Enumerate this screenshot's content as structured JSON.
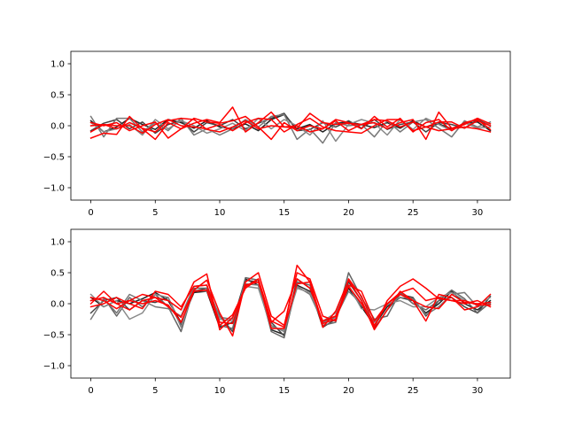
{
  "chart_data": [
    {
      "type": "line",
      "title": "",
      "xlabel": "",
      "ylabel": "",
      "xlim": [
        -1.55,
        32.55
      ],
      "ylim": [
        -1.2,
        1.2
      ],
      "xticks": [
        0,
        5,
        10,
        15,
        20,
        25,
        30
      ],
      "yticks": [
        -1.0,
        -0.5,
        0.0,
        0.5,
        1.0
      ],
      "xtick_labels": [
        "0",
        "5",
        "10",
        "15",
        "20",
        "25",
        "30"
      ],
      "ytick_labels": [
        "−1.0",
        "−0.5",
        "0.0",
        "0.5",
        "1.0"
      ],
      "grid": false,
      "x": [
        0,
        1,
        2,
        3,
        4,
        5,
        6,
        7,
        8,
        9,
        10,
        11,
        12,
        13,
        14,
        15,
        16,
        17,
        18,
        19,
        20,
        21,
        22,
        23,
        24,
        25,
        26,
        27,
        28,
        29,
        30,
        31
      ],
      "series": [
        {
          "color": "#222222",
          "values": [
            0.08,
            -0.1,
            -0.02,
            0.12,
            0.02,
            -0.06,
            0.1,
            0.05,
            -0.04,
            0.08,
            -0.02,
            -0.05,
            0.03,
            -0.08,
            0.1,
            0.18,
            -0.05,
            0.02,
            -0.1,
            0.04,
            0.06,
            0.02,
            -0.03,
            0.05,
            -0.04,
            0.08,
            -0.02,
            0.03,
            -0.05,
            0.04,
            0.06,
            -0.08
          ]
        },
        {
          "color": "#444444",
          "values": [
            -0.08,
            0.04,
            0.1,
            -0.05,
            0.06,
            -0.12,
            0.02,
            0.08,
            -0.1,
            0.05,
            0.0,
            0.1,
            -0.05,
            0.04,
            0.12,
            0.2,
            -0.08,
            -0.06,
            0.05,
            -0.02,
            0.08,
            -0.04,
            0.1,
            -0.06,
            0.02,
            0.06,
            -0.1,
            0.05,
            0.02,
            -0.04,
            0.1,
            0.0
          ]
        },
        {
          "color": "#777777",
          "values": [
            0.15,
            -0.18,
            0.12,
            0.12,
            -0.1,
            0.05,
            -0.08,
            0.12,
            -0.15,
            -0.05,
            -0.15,
            -0.05,
            0.1,
            -0.02,
            0.15,
            0.18,
            -0.22,
            -0.05,
            -0.28,
            0.05,
            0.0,
            0.02,
            -0.18,
            0.08,
            -0.1,
            0.06,
            0.1,
            -0.04,
            -0.18,
            0.08,
            -0.02,
            0.06
          ]
        },
        {
          "color": "#888888",
          "values": [
            0.05,
            -0.1,
            -0.05,
            0.02,
            -0.15,
            0.1,
            -0.05,
            0.08,
            0.0,
            -0.12,
            -0.05,
            0.04,
            -0.08,
            0.12,
            -0.05,
            0.1,
            0.0,
            -0.15,
            0.08,
            -0.25,
            0.02,
            0.1,
            0.04,
            -0.15,
            0.1,
            -0.06,
            0.12,
            0.02,
            -0.08,
            0.05,
            -0.04,
            -0.02
          ]
        },
        {
          "color": "#ff0000",
          "values": [
            -0.2,
            -0.12,
            -0.14,
            0.15,
            -0.05,
            -0.22,
            0.05,
            -0.05,
            0.04,
            0.1,
            0.05,
            0.3,
            -0.1,
            0.05,
            0.22,
            -0.02,
            0.0,
            -0.1,
            -0.05,
            0.08,
            -0.08,
            0.02,
            0.05,
            -0.05,
            0.05,
            0.1,
            -0.22,
            0.22,
            -0.04,
            0.02,
            0.12,
            0.03
          ]
        },
        {
          "color": "#ff0000",
          "values": [
            0.05,
            0.0,
            0.05,
            -0.08,
            0.0,
            0.06,
            -0.2,
            -0.05,
            0.12,
            0.06,
            0.04,
            0.08,
            0.15,
            -0.02,
            -0.22,
            0.05,
            -0.08,
            0.0,
            -0.05,
            0.1,
            0.05,
            -0.05,
            0.15,
            -0.02,
            0.12,
            -0.1,
            0.05,
            0.1,
            -0.08,
            0.05,
            0.1,
            -0.06
          ]
        },
        {
          "color": "#ff0000",
          "values": [
            0.0,
            0.02,
            0.0,
            0.0,
            -0.12,
            0.02,
            0.1,
            0.0,
            -0.02,
            -0.05,
            0.02,
            -0.08,
            0.05,
            0.12,
            0.1,
            -0.1,
            0.02,
            0.12,
            -0.02,
            -0.08,
            -0.1,
            -0.12,
            0.0,
            0.1,
            0.1,
            -0.08,
            -0.02,
            -0.08,
            -0.05,
            -0.02,
            -0.05,
            -0.1
          ]
        },
        {
          "color": "#ff0000",
          "values": [
            -0.1,
            0.02,
            -0.05,
            0.05,
            -0.04,
            -0.1,
            0.08,
            0.12,
            0.1,
            -0.06,
            -0.1,
            -0.02,
            0.08,
            -0.05,
            0.0,
            -0.02,
            -0.04,
            0.2,
            0.05,
            0.02,
            0.04,
            0.02,
            0.1,
            0.08,
            -0.02,
            0.06,
            -0.02,
            0.06,
            0.06,
            -0.04,
            0.08,
            0.0
          ]
        }
      ]
    },
    {
      "type": "line",
      "title": "",
      "xlabel": "",
      "ylabel": "",
      "xlim": [
        -1.55,
        32.55
      ],
      "ylim": [
        -1.2,
        1.2
      ],
      "xticks": [
        0,
        5,
        10,
        15,
        20,
        25,
        30
      ],
      "yticks": [
        -1.0,
        -0.5,
        0.0,
        0.5,
        1.0
      ],
      "xtick_labels": [
        "0",
        "5",
        "10",
        "15",
        "20",
        "25",
        "30"
      ],
      "ytick_labels": [
        "−1.0",
        "−0.5",
        "0.0",
        "0.5",
        "1.0"
      ],
      "grid": false,
      "x": [
        0,
        1,
        2,
        3,
        4,
        5,
        6,
        7,
        8,
        9,
        10,
        11,
        12,
        13,
        14,
        15,
        16,
        17,
        18,
        19,
        20,
        21,
        22,
        23,
        24,
        25,
        26,
        27,
        28,
        29,
        30,
        31
      ],
      "series": [
        {
          "color": "#222222",
          "values": [
            0.1,
            -0.05,
            0.05,
            0.0,
            0.08,
            0.18,
            0.05,
            -0.3,
            0.18,
            0.2,
            -0.38,
            -0.3,
            0.4,
            0.3,
            -0.42,
            -0.5,
            0.3,
            0.2,
            -0.3,
            -0.2,
            0.25,
            -0.05,
            -0.35,
            -0.05,
            0.1,
            0.05,
            -0.15,
            0.0,
            0.2,
            0.0,
            -0.1,
            0.05
          ]
        },
        {
          "color": "#444444",
          "values": [
            -0.15,
            0.05,
            0.1,
            -0.1,
            0.05,
            0.02,
            0.1,
            -0.35,
            0.2,
            0.25,
            -0.2,
            -0.45,
            0.38,
            0.35,
            -0.3,
            -0.52,
            0.4,
            0.25,
            -0.38,
            -0.25,
            0.35,
            0.05,
            -0.4,
            -0.1,
            0.15,
            0.1,
            -0.2,
            0.05,
            0.1,
            -0.05,
            -0.15,
            0.12
          ]
        },
        {
          "color": "#666666",
          "values": [
            0.05,
            0.1,
            -0.2,
            0.1,
            -0.05,
            0.15,
            -0.05,
            -0.45,
            0.25,
            0.25,
            -0.35,
            -0.4,
            0.42,
            0.38,
            -0.45,
            -0.55,
            0.35,
            0.3,
            -0.35,
            -0.3,
            0.5,
            0.1,
            -0.25,
            -0.2,
            0.18,
            0.0,
            -0.1,
            0.05,
            0.22,
            0.08,
            -0.15,
            0.02
          ]
        },
        {
          "color": "#777777",
          "values": [
            -0.25,
            0.08,
            -0.15,
            0.15,
            0.05,
            -0.05,
            -0.08,
            -0.2,
            0.28,
            0.3,
            -0.22,
            -0.25,
            0.32,
            0.3,
            -0.35,
            -0.45,
            0.28,
            0.15,
            -0.3,
            -0.22,
            0.2,
            0.0,
            -0.3,
            -0.02,
            0.1,
            0.08,
            -0.18,
            -0.05,
            0.15,
            0.18,
            -0.05,
            0.0
          ]
        },
        {
          "color": "#888888",
          "values": [
            0.15,
            -0.05,
            0.05,
            -0.25,
            -0.15,
            0.15,
            0.1,
            -0.38,
            0.22,
            0.2,
            -0.25,
            -0.28,
            0.28,
            0.25,
            -0.38,
            -0.42,
            0.25,
            0.18,
            -0.28,
            -0.15,
            0.3,
            -0.08,
            -0.1,
            0.0,
            0.05,
            -0.05,
            -0.05,
            0.1,
            0.18,
            0.05,
            -0.02,
            0.1
          ]
        },
        {
          "color": "#ff0000",
          "values": [
            0.0,
            0.2,
            0.0,
            -0.1,
            0.05,
            0.1,
            0.05,
            -0.1,
            0.35,
            0.48,
            -0.42,
            -0.22,
            0.28,
            0.4,
            -0.28,
            -0.38,
            0.62,
            0.35,
            -0.38,
            -0.12,
            0.38,
            0.05,
            -0.42,
            -0.1,
            0.2,
            0.05,
            -0.05,
            -0.08,
            0.15,
            0.02,
            0.0,
            0.02
          ]
        },
        {
          "color": "#ff0000",
          "values": [
            0.1,
            0.05,
            -0.08,
            0.05,
            0.15,
            0.1,
            -0.05,
            -0.22,
            0.22,
            0.38,
            -0.15,
            -0.52,
            0.35,
            0.5,
            -0.2,
            -0.35,
            0.5,
            0.4,
            -0.2,
            -0.28,
            0.4,
            0.12,
            -0.35,
            0.0,
            0.15,
            0.05,
            -0.28,
            0.15,
            0.1,
            -0.1,
            -0.05,
            0.15
          ]
        },
        {
          "color": "#ff0000",
          "values": [
            -0.05,
            0.0,
            0.1,
            0.0,
            -0.08,
            0.2,
            0.15,
            -0.05,
            0.28,
            0.3,
            -0.3,
            -0.32,
            0.3,
            0.35,
            -0.3,
            -0.12,
            0.4,
            0.25,
            -0.28,
            -0.2,
            0.3,
            0.2,
            -0.28,
            0.0,
            0.18,
            0.25,
            0.05,
            0.1,
            0.05,
            0.05,
            -0.02,
            -0.02
          ]
        },
        {
          "color": "#ff0000",
          "values": [
            0.05,
            0.1,
            0.0,
            0.05,
            0.0,
            0.05,
            -0.02,
            -0.3,
            0.2,
            0.22,
            -0.35,
            -0.18,
            0.25,
            0.4,
            -0.4,
            -0.4,
            0.32,
            0.35,
            -0.32,
            -0.25,
            0.28,
            0.0,
            -0.38,
            0.05,
            0.28,
            0.4,
            0.25,
            0.08,
            0.05,
            0.0,
            0.05,
            -0.05
          ]
        }
      ]
    }
  ]
}
